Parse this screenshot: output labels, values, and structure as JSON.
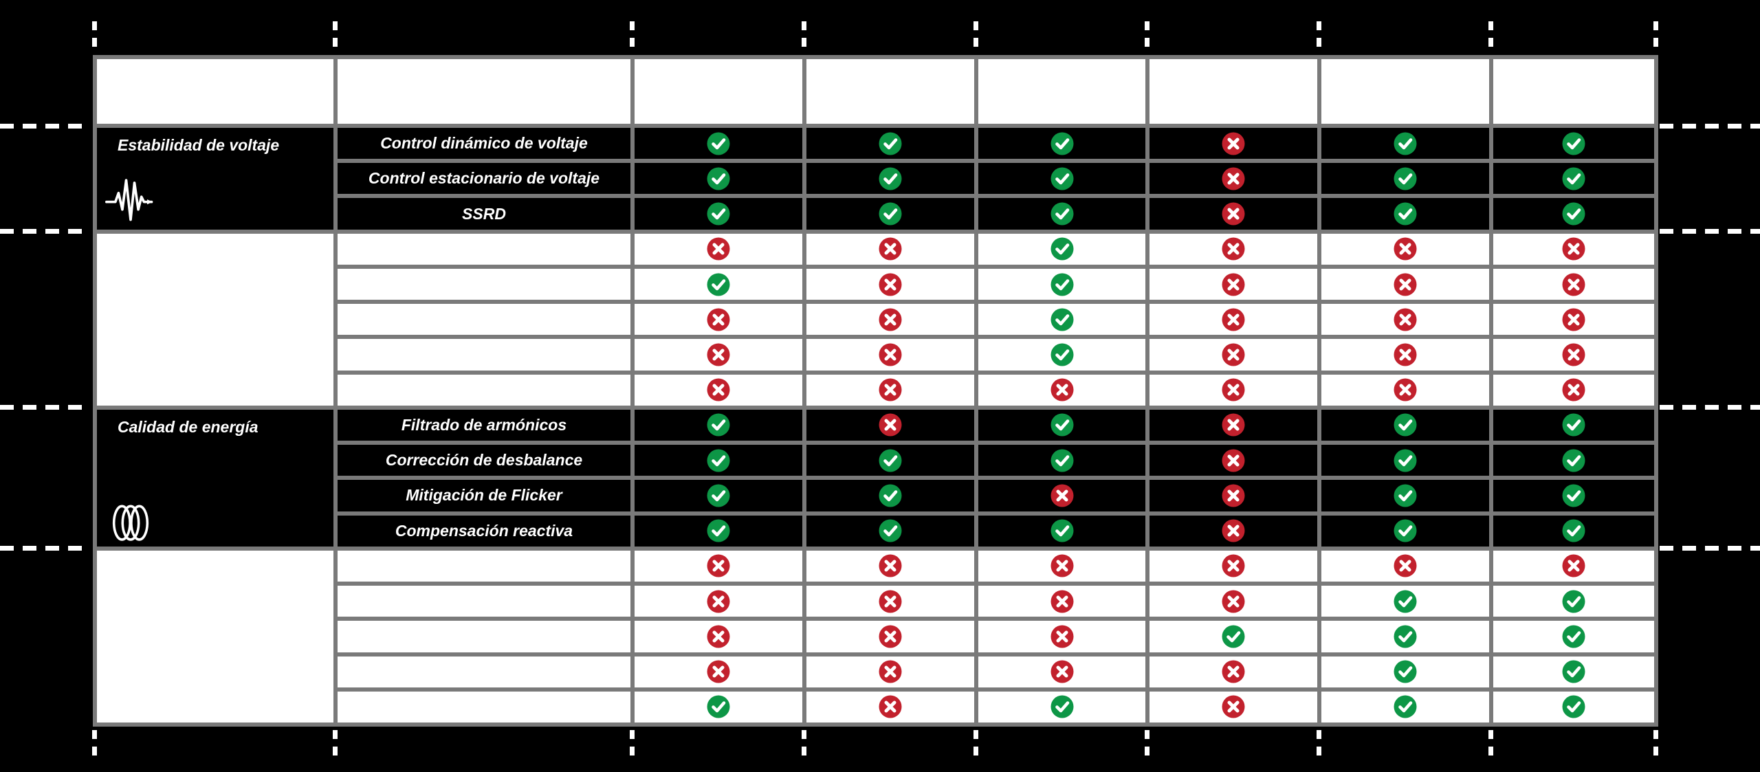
{
  "canvas": {
    "background": "#000000"
  },
  "guides": {
    "color": "#ffffff"
  },
  "table": {
    "grid_color": "#7A7A7A",
    "header_cells": [
      "",
      "",
      "",
      "",
      "",
      "",
      "",
      ""
    ],
    "marks": {
      "yes_icon": "check-circle-icon",
      "no_icon": "cross-circle-icon",
      "yes_color": "#0D9646",
      "no_color": "#C2212D",
      "glyph_color": "#ffffff"
    },
    "sections": [
      {
        "category": "Estabilidad de voltaje",
        "icon": "voltage-pulse-icon",
        "theme": "dark",
        "rows": [
          {
            "feature": "Control dinámico de voltaje",
            "values": [
              true,
              true,
              true,
              false,
              true,
              true
            ]
          },
          {
            "feature": "Control estacionario de voltaje",
            "values": [
              true,
              true,
              true,
              false,
              true,
              true
            ]
          },
          {
            "feature": "SSRD",
            "values": [
              true,
              true,
              true,
              false,
              true,
              true
            ]
          }
        ]
      },
      {
        "category": "",
        "icon": null,
        "theme": "light",
        "rows": [
          {
            "feature": "",
            "values": [
              false,
              false,
              true,
              false,
              false,
              false
            ]
          },
          {
            "feature": "",
            "values": [
              true,
              false,
              true,
              false,
              false,
              false
            ]
          },
          {
            "feature": "",
            "values": [
              false,
              false,
              true,
              false,
              false,
              false
            ]
          },
          {
            "feature": "",
            "values": [
              false,
              false,
              true,
              false,
              false,
              false
            ]
          },
          {
            "feature": "",
            "values": [
              false,
              false,
              false,
              false,
              false,
              false
            ]
          }
        ]
      },
      {
        "category": "Calidad de energía",
        "icon": "three-phase-waves-icon",
        "theme": "dark",
        "rows": [
          {
            "feature": "Filtrado de armónicos",
            "values": [
              true,
              false,
              true,
              false,
              true,
              true
            ]
          },
          {
            "feature": "Corrección de desbalance",
            "values": [
              true,
              true,
              true,
              false,
              true,
              true
            ]
          },
          {
            "feature": "Mitigación de Flicker",
            "values": [
              true,
              true,
              false,
              false,
              true,
              true
            ]
          },
          {
            "feature": "Compensación reactiva",
            "values": [
              true,
              true,
              true,
              false,
              true,
              true
            ]
          }
        ]
      },
      {
        "category": "",
        "icon": null,
        "theme": "light",
        "rows": [
          {
            "feature": "",
            "values": [
              false,
              false,
              false,
              false,
              false,
              false
            ]
          },
          {
            "feature": "",
            "values": [
              false,
              false,
              false,
              false,
              true,
              true
            ]
          },
          {
            "feature": "",
            "values": [
              false,
              false,
              false,
              true,
              true,
              true
            ]
          },
          {
            "feature": "",
            "values": [
              false,
              false,
              false,
              false,
              true,
              true
            ]
          },
          {
            "feature": "",
            "values": [
              true,
              false,
              true,
              false,
              true,
              true
            ]
          }
        ]
      }
    ]
  }
}
